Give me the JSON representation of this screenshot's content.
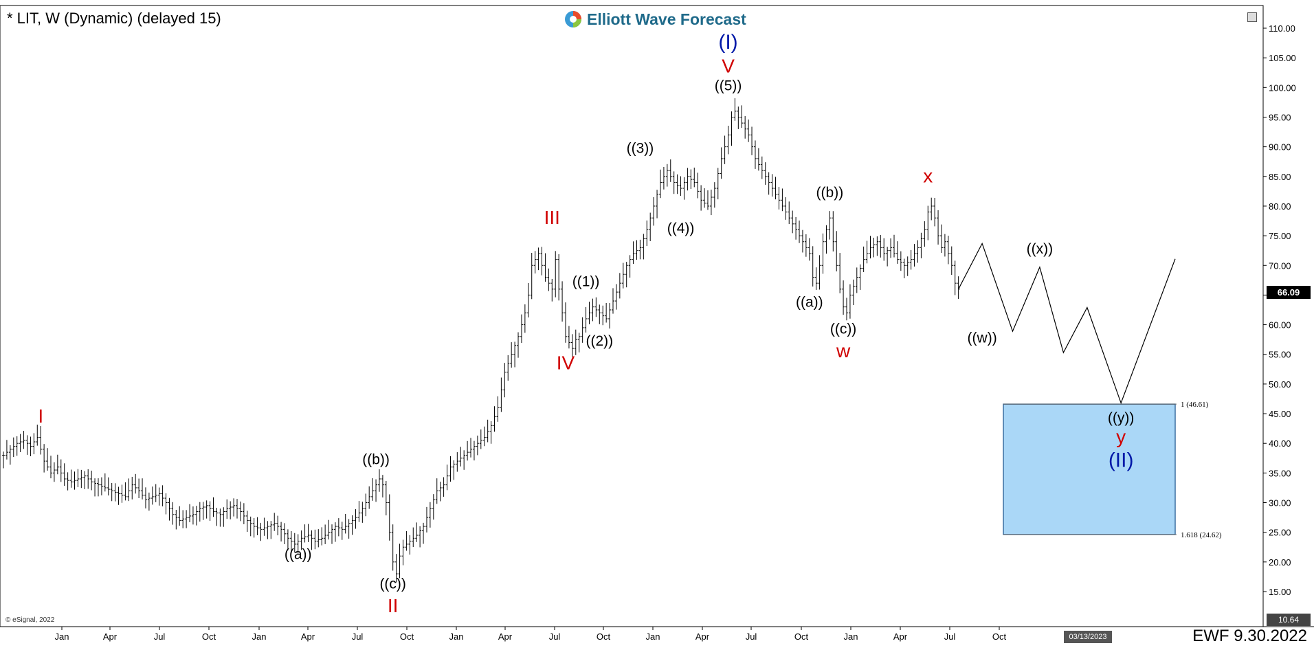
{
  "header": {
    "title": "* LIT, W (Dynamic) (delayed 15)",
    "logo_text": "Elliott Wave Forecast",
    "footer": "EWF 9.30.2022",
    "copyright": "© eSignal, 2022"
  },
  "chart_data": {
    "type": "bar",
    "y_ticks": [
      "110.00",
      "105.00",
      "100.00",
      "95.00",
      "90.00",
      "85.00",
      "80.00",
      "75.00",
      "70.00",
      "65.00",
      "60.00",
      "55.00",
      "50.00",
      "45.00",
      "40.00",
      "35.00",
      "30.00",
      "25.00",
      "20.00",
      "15.00"
    ],
    "ylim": [
      10.64,
      110.0
    ],
    "x_ticks": [
      "Jan",
      "Apr",
      "Jul",
      "Oct",
      "Jan",
      "Apr",
      "Jul",
      "Oct",
      "Jan",
      "Apr",
      "Jul",
      "Oct",
      "Jan",
      "Apr",
      "Jul",
      "Oct",
      "Jan",
      "Apr",
      "Jul",
      "Oct"
    ],
    "current_price": "66.09",
    "scale_low": "10.64",
    "projection_date": "03/13/2023",
    "price_path": [
      [
        0,
        38
      ],
      [
        2,
        39
      ],
      [
        4,
        40
      ],
      [
        6,
        40.5
      ],
      [
        8,
        39.5
      ],
      [
        10,
        41
      ],
      [
        11,
        39
      ],
      [
        12,
        37
      ],
      [
        14,
        35
      ],
      [
        16,
        36
      ],
      [
        18,
        34
      ],
      [
        20,
        33.5
      ],
      [
        22,
        34
      ],
      [
        24,
        34.5
      ],
      [
        26,
        33.5
      ],
      [
        28,
        33
      ],
      [
        30,
        32.5
      ],
      [
        32,
        32
      ],
      [
        34,
        31.5
      ],
      [
        36,
        31
      ],
      [
        38,
        33
      ],
      [
        40,
        32
      ],
      [
        42,
        30.5
      ],
      [
        44,
        31
      ],
      [
        46,
        31.5
      ],
      [
        48,
        30
      ],
      [
        50,
        28
      ],
      [
        52,
        27
      ],
      [
        54,
        27.5
      ],
      [
        56,
        28
      ],
      [
        58,
        29
      ],
      [
        60,
        29.5
      ],
      [
        62,
        28.5
      ],
      [
        64,
        28
      ],
      [
        66,
        29
      ],
      [
        68,
        29.5
      ],
      [
        70,
        28.5
      ],
      [
        72,
        27
      ],
      [
        74,
        26
      ],
      [
        76,
        25.5
      ],
      [
        78,
        26
      ],
      [
        80,
        26.5
      ],
      [
        82,
        25.5
      ],
      [
        84,
        24
      ],
      [
        86,
        23
      ],
      [
        88,
        24
      ],
      [
        90,
        24.5
      ],
      [
        92,
        23.5
      ],
      [
        94,
        24
      ],
      [
        96,
        25
      ],
      [
        98,
        26
      ],
      [
        100,
        25.5
      ],
      [
        102,
        26.5
      ],
      [
        104,
        27.5
      ],
      [
        106,
        29
      ],
      [
        108,
        31
      ],
      [
        110,
        33
      ],
      [
        111,
        34
      ],
      [
        112,
        33
      ],
      [
        113,
        30
      ],
      [
        114,
        25
      ],
      [
        115,
        20
      ],
      [
        116,
        18
      ],
      [
        117,
        21
      ],
      [
        118,
        22.5
      ],
      [
        120,
        23.5
      ],
      [
        122,
        24.5
      ],
      [
        124,
        26
      ],
      [
        126,
        29
      ],
      [
        128,
        32
      ],
      [
        130,
        33
      ],
      [
        132,
        36
      ],
      [
        134,
        37
      ],
      [
        136,
        38
      ],
      [
        138,
        39
      ],
      [
        140,
        40
      ],
      [
        142,
        41
      ],
      [
        144,
        43
      ],
      [
        146,
        46
      ],
      [
        148,
        52
      ],
      [
        150,
        55
      ],
      [
        152,
        58
      ],
      [
        154,
        62
      ],
      [
        155,
        65
      ],
      [
        156,
        70
      ],
      [
        158,
        72
      ],
      [
        160,
        68
      ],
      [
        162,
        66
      ],
      [
        163,
        71
      ],
      [
        164,
        66
      ],
      [
        165,
        62
      ],
      [
        166,
        58
      ],
      [
        167,
        57
      ],
      [
        168,
        56
      ],
      [
        169,
        57.5
      ],
      [
        170,
        58
      ],
      [
        172,
        61
      ],
      [
        174,
        63
      ],
      [
        176,
        62
      ],
      [
        178,
        61
      ],
      [
        180,
        64
      ],
      [
        182,
        67
      ],
      [
        184,
        70
      ],
      [
        186,
        72
      ],
      [
        188,
        73
      ],
      [
        190,
        76
      ],
      [
        192,
        80
      ],
      [
        194,
        84
      ],
      [
        196,
        86
      ],
      [
        198,
        84
      ],
      [
        200,
        83
      ],
      [
        202,
        85
      ],
      [
        204,
        84
      ],
      [
        206,
        81
      ],
      [
        208,
        80
      ],
      [
        210,
        83
      ],
      [
        212,
        88
      ],
      [
        214,
        92
      ],
      [
        215,
        95
      ],
      [
        216,
        96
      ],
      [
        218,
        94
      ],
      [
        220,
        92
      ],
      [
        222,
        88
      ],
      [
        224,
        86
      ],
      [
        226,
        84
      ],
      [
        228,
        82
      ],
      [
        230,
        80
      ],
      [
        232,
        78
      ],
      [
        234,
        76
      ],
      [
        236,
        74
      ],
      [
        238,
        72
      ],
      [
        239,
        68
      ],
      [
        240,
        67
      ],
      [
        241,
        70
      ],
      [
        242,
        74
      ],
      [
        243,
        76
      ],
      [
        244,
        78
      ],
      [
        245,
        74
      ],
      [
        246,
        70
      ],
      [
        247,
        66
      ],
      [
        248,
        63
      ],
      [
        249,
        62
      ],
      [
        250,
        65
      ],
      [
        252,
        68
      ],
      [
        254,
        71
      ],
      [
        256,
        73
      ],
      [
        258,
        74
      ],
      [
        260,
        72
      ],
      [
        262,
        73
      ],
      [
        264,
        71
      ],
      [
        266,
        70
      ],
      [
        268,
        71
      ],
      [
        270,
        73
      ],
      [
        272,
        76
      ],
      [
        273,
        79
      ],
      [
        274,
        80
      ],
      [
        275,
        78
      ],
      [
        276,
        75
      ],
      [
        277,
        73
      ],
      [
        278,
        74
      ],
      [
        279,
        72
      ],
      [
        280,
        70
      ],
      [
        281,
        67
      ],
      [
        282,
        66
      ]
    ],
    "projection": [
      [
        282,
        66
      ],
      [
        289,
        73.7
      ],
      [
        298,
        58.9
      ],
      [
        306,
        69.7
      ],
      [
        313,
        55.3
      ],
      [
        320,
        62.9
      ],
      [
        330,
        46.8
      ],
      [
        346,
        71.1
      ]
    ],
    "target_zone": {
      "label_top": "1 (46.61)",
      "label_bottom": "1.618 (24.62)",
      "top": 46.61,
      "bottom": 24.62,
      "x_start": 326,
      "x_end": 354
    },
    "labels": [
      {
        "text": "I",
        "x": 11,
        "y": 43.5,
        "color": "#d00000"
      },
      {
        "text": "((a))",
        "x": 87,
        "y": 20.5,
        "color": "#000000"
      },
      {
        "text": "((b))",
        "x": 110,
        "y": 36.5,
        "color": "#000000"
      },
      {
        "text": "((c))",
        "x": 115,
        "y": 15.5,
        "color": "#000000"
      },
      {
        "text": "II",
        "x": 115,
        "y": 11.5,
        "color": "#d00000"
      },
      {
        "text": "III",
        "x": 162,
        "y": 77,
        "color": "#d00000"
      },
      {
        "text": "IV",
        "x": 166,
        "y": 52.5,
        "color": "#d00000"
      },
      {
        "text": "((1))",
        "x": 172,
        "y": 66.5,
        "color": "#000000"
      },
      {
        "text": "((2))",
        "x": 176,
        "y": 56.5,
        "color": "#000000"
      },
      {
        "text": "((3))",
        "x": 188,
        "y": 89,
        "color": "#000000"
      },
      {
        "text": "((4))",
        "x": 200,
        "y": 75.5,
        "color": "#000000"
      },
      {
        "text": "((5))",
        "x": 214,
        "y": 99.5,
        "color": "#000000"
      },
      {
        "text": "V",
        "x": 214,
        "y": 102.5,
        "color": "#d00000"
      },
      {
        "text": "(I)",
        "x": 214,
        "y": 106.5,
        "color": "#0018a8"
      },
      {
        "text": "((a))",
        "x": 238,
        "y": 63,
        "color": "#000000"
      },
      {
        "text": "((b))",
        "x": 244,
        "y": 81.5,
        "color": "#000000"
      },
      {
        "text": "((c))",
        "x": 248,
        "y": 58.5,
        "color": "#000000"
      },
      {
        "text": "w",
        "x": 248,
        "y": 54.5,
        "color": "#d00000"
      },
      {
        "text": "x",
        "x": 273,
        "y": 84,
        "color": "#d00000"
      },
      {
        "text": "((x))",
        "x": 306,
        "y": 72,
        "color": "#000000"
      },
      {
        "text": "((w))",
        "x": 289,
        "y": 57,
        "color": "#000000"
      },
      {
        "text": "((y))",
        "x": 330,
        "y": 43.5,
        "color": "#000000"
      },
      {
        "text": "y",
        "x": 330,
        "y": 40,
        "color": "#d00000"
      },
      {
        "text": "(II)",
        "x": 330,
        "y": 36,
        "color": "#0018a8"
      }
    ]
  }
}
